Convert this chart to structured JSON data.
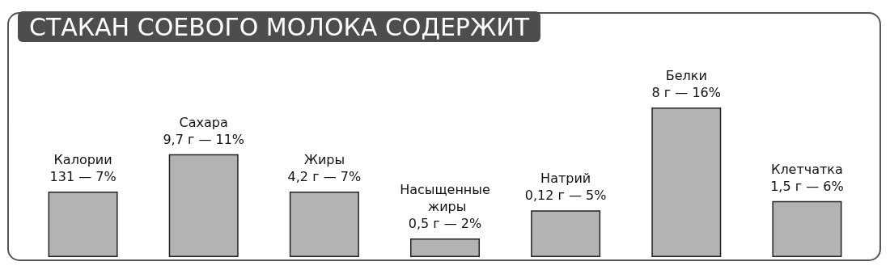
{
  "chart_data": {
    "type": "bar",
    "title": "СТАКАН СОЕВОГО МОЛОКА СОДЕРЖИТ",
    "categories": [
      "Калории",
      "Сахара",
      "Жиры",
      "Насыщенные жиры",
      "Натрий",
      "Белки",
      "Клетчатка"
    ],
    "values": [
      7,
      11,
      7,
      2,
      5,
      16,
      6
    ],
    "value_labels": [
      "131 — 7%",
      "9,7 г — 11%",
      "4,2 г — 7%",
      "0,5 г — 2%",
      "0,12 г — 5%",
      "8 г — 16%",
      "1,5 г — 6%"
    ],
    "color": "#b3b3b3"
  }
}
